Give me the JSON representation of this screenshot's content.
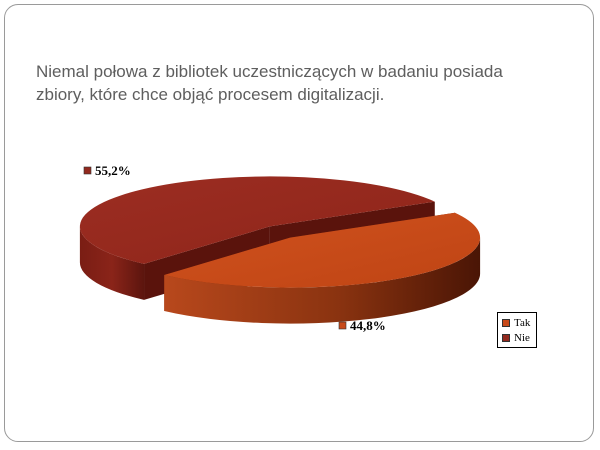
{
  "title": "Niemal połowa z bibliotek uczestniczących w badaniu posiada zbiory, które chce objąć procesem digitalizacji.",
  "chart_data": {
    "type": "pie",
    "title": "",
    "categories": [
      "Tak",
      "Nie"
    ],
    "values": [
      44.8,
      55.2
    ],
    "data_labels": [
      "44,8%",
      "55,2%"
    ],
    "colors": [
      "#c84a1a",
      "#92291e"
    ],
    "legend_position": "bottom-right",
    "style": "3d-exploded"
  }
}
